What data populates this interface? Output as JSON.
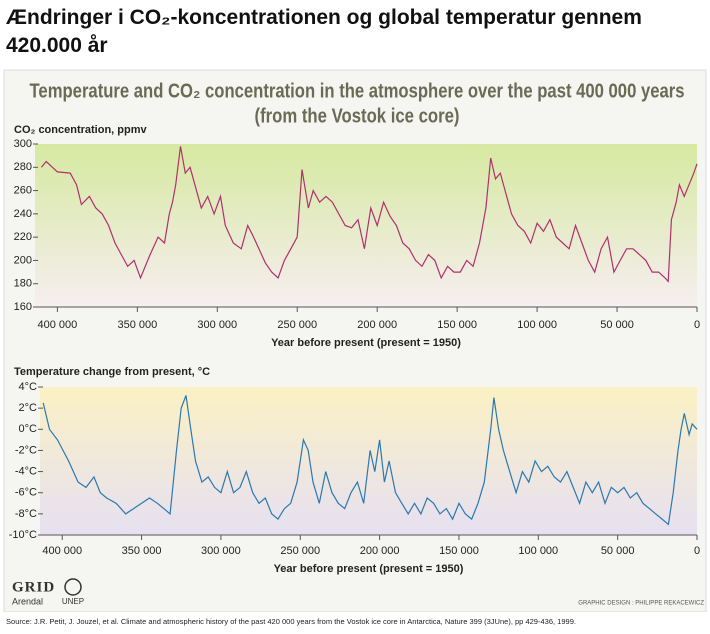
{
  "header": {
    "title": "Ændringer i CO₂-koncentrationen og global temperatur gennem 420.000 år"
  },
  "chart_data": [
    {
      "type": "line",
      "title": "Temperature and CO₂ concentration in the atmosphere over the past 400 000 years",
      "subtitle": "(from the Vostok ice core)",
      "y_label": "CO₂ concentration, ppmv",
      "x_label": "Year before present (present = 1950)",
      "color": "#b03070",
      "xlim": [
        414000,
        0
      ],
      "ylim": [
        160,
        300
      ],
      "yticks": [
        160,
        180,
        200,
        220,
        240,
        260,
        280,
        300
      ],
      "xticks": [
        {
          "value": 400000,
          "label": "400 000"
        },
        {
          "value": 350000,
          "label": "350 000"
        },
        {
          "value": 300000,
          "label": "300 000"
        },
        {
          "value": 250000,
          "label": "250 000"
        },
        {
          "value": 200000,
          "label": "200 000"
        },
        {
          "value": 150000,
          "label": "150 000"
        },
        {
          "value": 100000,
          "label": "100 000"
        },
        {
          "value": 50000,
          "label": "50 000"
        },
        0
      ],
      "x": [
        410000,
        407000,
        400000,
        392000,
        388000,
        385000,
        380000,
        376000,
        372000,
        368000,
        364000,
        360000,
        356000,
        352000,
        348000,
        342000,
        337000,
        333000,
        330000,
        328000,
        326000,
        323000,
        320000,
        317000,
        314000,
        310000,
        306000,
        302000,
        298000,
        295000,
        290000,
        285000,
        281000,
        278000,
        274000,
        270000,
        266000,
        262000,
        258000,
        254000,
        250000,
        247000,
        243000,
        240000,
        236000,
        232000,
        228000,
        224000,
        220000,
        216000,
        212000,
        208000,
        204000,
        200000,
        196000,
        192000,
        188000,
        184000,
        180000,
        176000,
        172000,
        168000,
        164000,
        160000,
        156000,
        152000,
        148000,
        144000,
        140000,
        136000,
        132000,
        129000,
        126000,
        123000,
        120000,
        116000,
        112000,
        108000,
        104000,
        100000,
        96000,
        92000,
        88000,
        84000,
        80000,
        76000,
        72000,
        68000,
        64000,
        60000,
        56000,
        52000,
        48000,
        44000,
        40000,
        36000,
        32000,
        28000,
        24000,
        20000,
        18000,
        16000,
        13000,
        11000,
        8000,
        5000,
        2000,
        0
      ],
      "values": [
        280,
        285,
        276,
        275,
        265,
        248,
        255,
        245,
        240,
        230,
        215,
        205,
        195,
        200,
        185,
        205,
        220,
        215,
        240,
        250,
        265,
        298,
        275,
        280,
        265,
        245,
        255,
        240,
        255,
        230,
        215,
        210,
        230,
        222,
        210,
        198,
        190,
        185,
        200,
        210,
        220,
        278,
        245,
        260,
        250,
        255,
        250,
        240,
        230,
        228,
        235,
        210,
        245,
        230,
        250,
        238,
        230,
        215,
        210,
        200,
        195,
        205,
        200,
        185,
        195,
        190,
        190,
        200,
        195,
        215,
        245,
        288,
        270,
        275,
        260,
        240,
        230,
        225,
        215,
        232,
        225,
        235,
        220,
        215,
        210,
        230,
        215,
        200,
        190,
        210,
        220,
        190,
        200,
        210,
        210,
        205,
        200,
        190,
        190,
        185,
        182,
        235,
        250,
        265,
        255,
        265,
        275,
        283
      ]
    },
    {
      "type": "line",
      "y_label": "Temperature change from present, °C",
      "x_label": "Year before present (present = 1950)",
      "color": "#2a78b0",
      "xlim": [
        414000,
        0
      ],
      "ylim": [
        -10,
        4
      ],
      "yticks": [
        {
          "value": -10,
          "label": "-10°C"
        },
        {
          "value": -8,
          "label": "-8°C"
        },
        {
          "value": -6,
          "label": "-6°C"
        },
        {
          "value": -4,
          "label": "-4°C"
        },
        {
          "value": -2,
          "label": "-2°C"
        },
        {
          "value": 0,
          "label": "0°C"
        },
        {
          "value": 2,
          "label": "2°C"
        },
        {
          "value": 4,
          "label": "4°C"
        }
      ],
      "xticks": [
        {
          "value": 400000,
          "label": "400 000"
        },
        {
          "value": 350000,
          "label": "350 000"
        },
        {
          "value": 300000,
          "label": "300 000"
        },
        {
          "value": 250000,
          "label": "250 000"
        },
        {
          "value": 200000,
          "label": "200 000"
        },
        {
          "value": 150000,
          "label": "150 000"
        },
        {
          "value": 100000,
          "label": "100 000"
        },
        {
          "value": 50000,
          "label": "50 000"
        },
        0
      ],
      "x": [
        412000,
        408000,
        403000,
        396000,
        390000,
        385000,
        380000,
        376000,
        372000,
        366000,
        360000,
        355000,
        350000,
        345000,
        340000,
        336000,
        332000,
        328000,
        325000,
        322000,
        319000,
        316000,
        312000,
        308000,
        304000,
        300000,
        296000,
        292000,
        288000,
        284000,
        280000,
        276000,
        272000,
        268000,
        264000,
        260000,
        256000,
        252000,
        248000,
        245000,
        242000,
        238000,
        234000,
        230000,
        226000,
        222000,
        218000,
        214000,
        210000,
        206000,
        203000,
        200000,
        197000,
        194000,
        190000,
        186000,
        182000,
        178000,
        174000,
        170000,
        166000,
        162000,
        158000,
        154000,
        150000,
        146000,
        142000,
        138000,
        134000,
        130000,
        128000,
        125000,
        122000,
        118000,
        114000,
        110000,
        106000,
        102000,
        98000,
        94000,
        90000,
        86000,
        82000,
        78000,
        74000,
        70000,
        66000,
        62000,
        58000,
        54000,
        50000,
        46000,
        42000,
        38000,
        34000,
        30000,
        26000,
        22000,
        18000,
        15000,
        12000,
        10000,
        8000,
        5000,
        3000,
        0
      ],
      "values": [
        2.5,
        0,
        -1,
        -3,
        -5,
        -5.5,
        -4.5,
        -6,
        -6.5,
        -7,
        -8,
        -7.5,
        -7,
        -6.5,
        -7,
        -7.5,
        -8,
        -2,
        2,
        3.2,
        0,
        -3,
        -5,
        -4.5,
        -5.5,
        -6,
        -4,
        -6,
        -5.5,
        -4,
        -6,
        -7,
        -6.5,
        -8,
        -8.5,
        -7.5,
        -7,
        -5,
        -1,
        -2,
        -5,
        -7,
        -4,
        -6,
        -7,
        -7.5,
        -6,
        -5,
        -7,
        -2,
        -4,
        -1,
        -5,
        -3,
        -6,
        -7,
        -8,
        -7,
        -8,
        -6.5,
        -7,
        -8,
        -7.5,
        -8.5,
        -7,
        -8,
        -8.5,
        -7,
        -5,
        0,
        3,
        0,
        -2,
        -4,
        -6,
        -4,
        -5,
        -3,
        -4,
        -3.5,
        -4.5,
        -5,
        -4,
        -5.5,
        -7,
        -5,
        -6,
        -5,
        -7,
        -5.5,
        -6,
        -5.5,
        -6.5,
        -6,
        -7,
        -7.5,
        -8,
        -8.5,
        -9,
        -6,
        -2,
        0,
        1.5,
        -0.5,
        0.5,
        0
      ]
    }
  ],
  "footer": {
    "logo_grid": "GRID",
    "logo_arendal": "Arendal",
    "logo_unep": "UNEP",
    "credit": "GRAPHIC DESIGN : PHILIPPE REKACEWICZ",
    "source": "Source: J.R. Petit, J. Jouzel, et al. Climate and atmospheric history of the past 420 000 years from the Vostok ice core in Antarctica, Nature 399 (3JUne), pp 429-436, 1999."
  }
}
